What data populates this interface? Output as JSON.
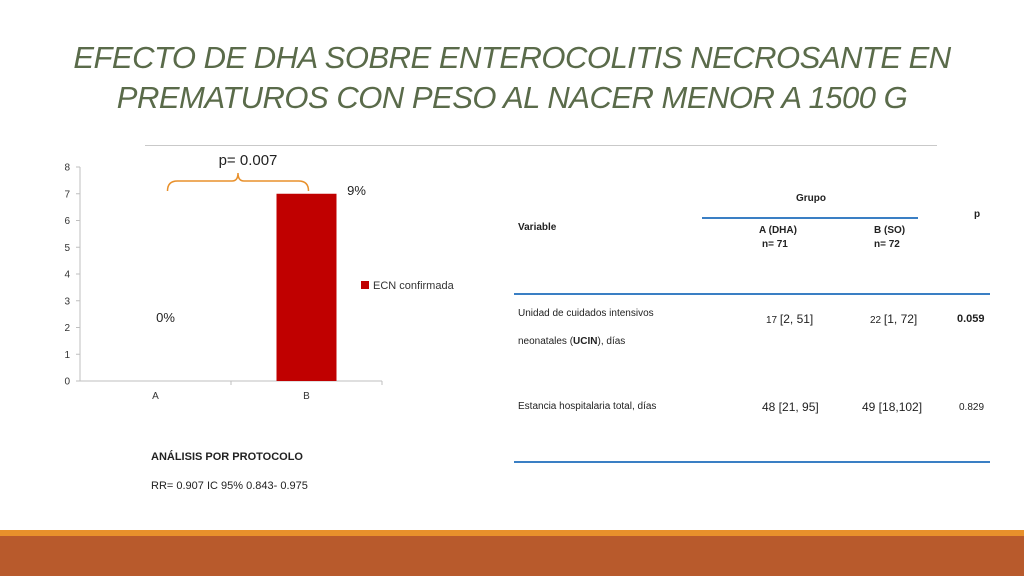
{
  "slide": {
    "title_line1": "EFECTO DE DHA SOBRE ENTEROCOLITIS NECROSANTE EN",
    "title_line2": "PREMATUROS CON PESO AL NACER MENOR A 1500 G"
  },
  "chart_data": {
    "type": "bar",
    "categories": [
      "A",
      "B"
    ],
    "series": [
      {
        "name": "ECN confirmada",
        "values": [
          0,
          7
        ]
      }
    ],
    "data_labels": [
      "0%",
      "9%"
    ],
    "annotation": "p= 0.007",
    "ylim": [
      0,
      8
    ],
    "yticks": [
      0,
      1,
      2,
      3,
      4,
      5,
      6,
      7,
      8
    ],
    "legend_position": "right",
    "grid": false,
    "colors": {
      "bar": "#c00000",
      "bracket": "#e8902b"
    }
  },
  "protocol": {
    "heading": "ANÁLISIS POR PROTOCOLO",
    "rr": "RR= 0.907 IC 95% 0.843- 0.975"
  },
  "table": {
    "group_header": "Grupo",
    "variable_header": "Variable",
    "p_header": "p",
    "col_a_line1": "A (DHA)",
    "col_a_line2": "n= 71",
    "col_b_line1": "B (SO)",
    "col_b_line2": "n= 72",
    "row1": {
      "label_line1": "Unidad de cuidados intensivos",
      "label_line2_pre": "neonatales (",
      "label_line2_bold": "UCIN",
      "label_line2_post": "), días",
      "a_median": "17",
      "a_range": "[2, 51]",
      "b_median": "22",
      "b_range": "[1, 72]",
      "p": "0.059"
    },
    "row2": {
      "label": "Estancia hospitalaria total, días",
      "a": "48 [21, 95]",
      "b": "49 [18,102]",
      "p": "0.829"
    },
    "rule_color": "#3a7fc4"
  }
}
